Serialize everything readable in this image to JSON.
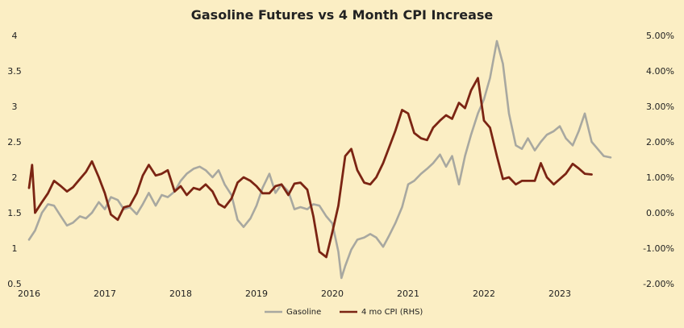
{
  "chart_data": {
    "type": "line",
    "title": "Gasoline Futures vs 4 Month CPI Increase",
    "x_tick_labels": [
      "2016",
      "2017",
      "2018",
      "2019",
      "2020",
      "2021",
      "2022",
      "2023"
    ],
    "y_left_tick_labels": [
      "0.5",
      "1",
      "1.5",
      "2",
      "2.5",
      "3",
      "3.5",
      "4"
    ],
    "y_right_tick_labels": [
      "-2.00%",
      "-1.00%",
      "0.00%",
      "1.00%",
      "2.00%",
      "3.00%",
      "4.00%",
      "5.00%"
    ],
    "y_left_range": [
      0.5,
      4
    ],
    "y_right_range": [
      -2.0,
      5.0
    ],
    "x_range": [
      2016.0,
      2024.0
    ],
    "legend_position": "bottom-center",
    "series": [
      {
        "name": "Gasoline",
        "axis": "left",
        "color": "#a8a8a0",
        "points": [
          [
            2016.0,
            1.12
          ],
          [
            2016.08,
            1.25
          ],
          [
            2016.17,
            1.5
          ],
          [
            2016.25,
            1.62
          ],
          [
            2016.33,
            1.6
          ],
          [
            2016.42,
            1.45
          ],
          [
            2016.5,
            1.32
          ],
          [
            2016.58,
            1.36
          ],
          [
            2016.67,
            1.45
          ],
          [
            2016.75,
            1.42
          ],
          [
            2016.83,
            1.5
          ],
          [
            2016.92,
            1.65
          ],
          [
            2017.0,
            1.55
          ],
          [
            2017.08,
            1.72
          ],
          [
            2017.17,
            1.68
          ],
          [
            2017.25,
            1.55
          ],
          [
            2017.33,
            1.58
          ],
          [
            2017.42,
            1.48
          ],
          [
            2017.5,
            1.62
          ],
          [
            2017.58,
            1.78
          ],
          [
            2017.67,
            1.6
          ],
          [
            2017.75,
            1.75
          ],
          [
            2017.83,
            1.72
          ],
          [
            2017.92,
            1.8
          ],
          [
            2018.0,
            1.95
          ],
          [
            2018.08,
            2.05
          ],
          [
            2018.17,
            2.12
          ],
          [
            2018.25,
            2.15
          ],
          [
            2018.33,
            2.1
          ],
          [
            2018.42,
            2.0
          ],
          [
            2018.5,
            2.1
          ],
          [
            2018.58,
            1.9
          ],
          [
            2018.67,
            1.75
          ],
          [
            2018.75,
            1.4
          ],
          [
            2018.83,
            1.3
          ],
          [
            2018.92,
            1.42
          ],
          [
            2019.0,
            1.6
          ],
          [
            2019.08,
            1.85
          ],
          [
            2019.17,
            2.05
          ],
          [
            2019.25,
            1.78
          ],
          [
            2019.33,
            1.9
          ],
          [
            2019.42,
            1.8
          ],
          [
            2019.5,
            1.55
          ],
          [
            2019.58,
            1.58
          ],
          [
            2019.67,
            1.55
          ],
          [
            2019.75,
            1.62
          ],
          [
            2019.83,
            1.6
          ],
          [
            2019.92,
            1.45
          ],
          [
            2020.0,
            1.35
          ],
          [
            2020.08,
            0.95
          ],
          [
            2020.12,
            0.58
          ],
          [
            2020.17,
            0.75
          ],
          [
            2020.25,
            0.98
          ],
          [
            2020.33,
            1.12
          ],
          [
            2020.42,
            1.15
          ],
          [
            2020.5,
            1.2
          ],
          [
            2020.58,
            1.15
          ],
          [
            2020.67,
            1.02
          ],
          [
            2020.75,
            1.18
          ],
          [
            2020.83,
            1.35
          ],
          [
            2020.92,
            1.58
          ],
          [
            2021.0,
            1.9
          ],
          [
            2021.08,
            1.95
          ],
          [
            2021.17,
            2.05
          ],
          [
            2021.25,
            2.12
          ],
          [
            2021.33,
            2.2
          ],
          [
            2021.42,
            2.32
          ],
          [
            2021.5,
            2.15
          ],
          [
            2021.58,
            2.3
          ],
          [
            2021.67,
            1.9
          ],
          [
            2021.75,
            2.3
          ],
          [
            2021.83,
            2.6
          ],
          [
            2021.92,
            2.9
          ],
          [
            2022.0,
            3.1
          ],
          [
            2022.08,
            3.4
          ],
          [
            2022.17,
            3.92
          ],
          [
            2022.25,
            3.6
          ],
          [
            2022.33,
            2.9
          ],
          [
            2022.42,
            2.45
          ],
          [
            2022.5,
            2.4
          ],
          [
            2022.58,
            2.55
          ],
          [
            2022.67,
            2.38
          ],
          [
            2022.75,
            2.5
          ],
          [
            2022.83,
            2.6
          ],
          [
            2022.92,
            2.65
          ],
          [
            2023.0,
            2.72
          ],
          [
            2023.08,
            2.55
          ],
          [
            2023.17,
            2.45
          ],
          [
            2023.25,
            2.65
          ],
          [
            2023.33,
            2.9
          ],
          [
            2023.42,
            2.5
          ],
          [
            2023.5,
            2.4
          ],
          [
            2023.58,
            2.3
          ],
          [
            2023.67,
            2.28
          ]
        ]
      },
      {
        "name": "4 mo CPI (RHS)",
        "axis": "right",
        "color": "#7b2413",
        "points": [
          [
            2016.0,
            0.7
          ],
          [
            2016.04,
            1.35
          ],
          [
            2016.08,
            0.0
          ],
          [
            2016.17,
            0.3
          ],
          [
            2016.25,
            0.55
          ],
          [
            2016.33,
            0.9
          ],
          [
            2016.42,
            0.75
          ],
          [
            2016.5,
            0.6
          ],
          [
            2016.58,
            0.72
          ],
          [
            2016.67,
            0.95
          ],
          [
            2016.75,
            1.15
          ],
          [
            2016.83,
            1.45
          ],
          [
            2016.92,
            1.0
          ],
          [
            2017.0,
            0.55
          ],
          [
            2017.08,
            -0.05
          ],
          [
            2017.17,
            -0.2
          ],
          [
            2017.25,
            0.15
          ],
          [
            2017.33,
            0.2
          ],
          [
            2017.42,
            0.55
          ],
          [
            2017.5,
            1.05
          ],
          [
            2017.58,
            1.35
          ],
          [
            2017.67,
            1.05
          ],
          [
            2017.75,
            1.1
          ],
          [
            2017.83,
            1.2
          ],
          [
            2017.92,
            0.6
          ],
          [
            2018.0,
            0.75
          ],
          [
            2018.08,
            0.5
          ],
          [
            2018.17,
            0.7
          ],
          [
            2018.25,
            0.65
          ],
          [
            2018.33,
            0.8
          ],
          [
            2018.42,
            0.6
          ],
          [
            2018.5,
            0.25
          ],
          [
            2018.58,
            0.15
          ],
          [
            2018.67,
            0.4
          ],
          [
            2018.75,
            0.85
          ],
          [
            2018.83,
            1.0
          ],
          [
            2018.92,
            0.9
          ],
          [
            2019.0,
            0.75
          ],
          [
            2019.08,
            0.55
          ],
          [
            2019.17,
            0.55
          ],
          [
            2019.25,
            0.75
          ],
          [
            2019.33,
            0.8
          ],
          [
            2019.42,
            0.5
          ],
          [
            2019.5,
            0.82
          ],
          [
            2019.58,
            0.85
          ],
          [
            2019.67,
            0.65
          ],
          [
            2019.75,
            -0.1
          ],
          [
            2019.83,
            -1.1
          ],
          [
            2019.92,
            -1.25
          ],
          [
            2020.0,
            -0.55
          ],
          [
            2020.08,
            0.2
          ],
          [
            2020.17,
            1.6
          ],
          [
            2020.25,
            1.8
          ],
          [
            2020.33,
            1.2
          ],
          [
            2020.42,
            0.85
          ],
          [
            2020.5,
            0.8
          ],
          [
            2020.58,
            1.0
          ],
          [
            2020.67,
            1.4
          ],
          [
            2020.75,
            1.85
          ],
          [
            2020.83,
            2.3
          ],
          [
            2020.92,
            2.9
          ],
          [
            2021.0,
            2.8
          ],
          [
            2021.08,
            2.25
          ],
          [
            2021.17,
            2.1
          ],
          [
            2021.25,
            2.05
          ],
          [
            2021.33,
            2.4
          ],
          [
            2021.42,
            2.6
          ],
          [
            2021.5,
            2.75
          ],
          [
            2021.58,
            2.65
          ],
          [
            2021.67,
            3.1
          ],
          [
            2021.75,
            2.95
          ],
          [
            2021.83,
            3.45
          ],
          [
            2021.92,
            3.8
          ],
          [
            2022.0,
            2.6
          ],
          [
            2022.08,
            2.4
          ],
          [
            2022.17,
            1.6
          ],
          [
            2022.25,
            0.95
          ],
          [
            2022.33,
            1.0
          ],
          [
            2022.42,
            0.8
          ],
          [
            2022.5,
            0.9
          ],
          [
            2022.58,
            0.9
          ],
          [
            2022.67,
            0.9
          ],
          [
            2022.75,
            1.4
          ],
          [
            2022.83,
            1.0
          ],
          [
            2022.92,
            0.8
          ],
          [
            2023.0,
            0.95
          ],
          [
            2023.08,
            1.1
          ],
          [
            2023.17,
            1.38
          ],
          [
            2023.25,
            1.25
          ],
          [
            2023.33,
            1.1
          ],
          [
            2023.42,
            1.08
          ]
        ]
      }
    ]
  }
}
